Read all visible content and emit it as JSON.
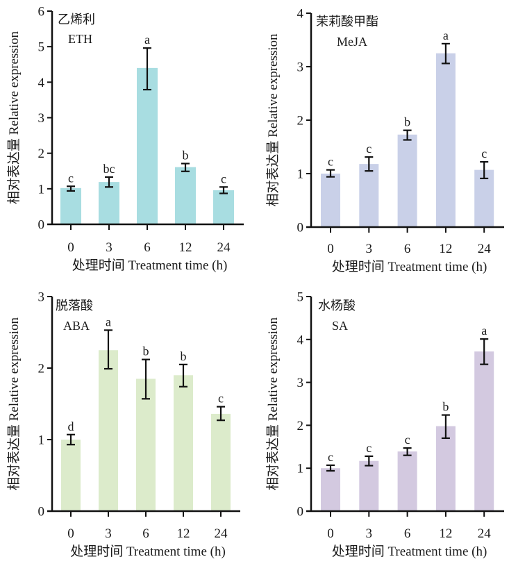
{
  "chart_data": [
    {
      "type": "bar",
      "title_cn": "乙烯利",
      "title_en": "ETH",
      "xlabel": "处理时间 Treatment time (h)",
      "ylabel": "相对表达量 Relative expression",
      "categories": [
        "0",
        "3",
        "6",
        "12",
        "24"
      ],
      "values": [
        1.02,
        1.19,
        4.4,
        1.61,
        0.96
      ],
      "error_low": [
        0.94,
        1.05,
        3.79,
        1.49,
        0.87
      ],
      "error_high": [
        1.07,
        1.33,
        4.96,
        1.71,
        1.05
      ],
      "significance": [
        "c",
        "bc",
        "a",
        "b",
        "c"
      ],
      "ylim": [
        0,
        6
      ],
      "yticks": [
        0,
        1,
        2,
        3,
        4,
        5,
        6
      ],
      "color": "#A8DDE1",
      "grid": false
    },
    {
      "type": "bar",
      "title_cn": "茉莉酸甲酯",
      "title_en": "MeJA",
      "xlabel": "处理时间 Treatment time (h)",
      "ylabel": "相对表达量 Relative expression",
      "categories": [
        "0",
        "3",
        "6",
        "12",
        "24"
      ],
      "values": [
        1.0,
        1.18,
        1.73,
        3.25,
        1.07
      ],
      "error_low": [
        0.94,
        1.05,
        1.63,
        3.06,
        0.91
      ],
      "error_high": [
        1.07,
        1.31,
        1.81,
        3.43,
        1.22
      ],
      "significance": [
        "c",
        "c",
        "b",
        "a",
        "c"
      ],
      "ylim": [
        0,
        4
      ],
      "yticks": [
        0,
        1,
        2,
        3,
        4
      ],
      "color": "#C9D0E8",
      "grid": false
    },
    {
      "type": "bar",
      "title_cn": "脱落酸",
      "title_en": "ABA",
      "xlabel": "处理时间 Treatment time (h)",
      "ylabel": "相对表达量 Relative expression",
      "categories": [
        "0",
        "3",
        "6",
        "12",
        "24"
      ],
      "values": [
        1.0,
        2.25,
        1.85,
        1.9,
        1.36
      ],
      "error_low": [
        0.93,
        1.99,
        1.57,
        1.74,
        1.27
      ],
      "error_high": [
        1.07,
        2.53,
        2.12,
        2.05,
        1.46
      ],
      "significance": [
        "d",
        "a",
        "b",
        "b",
        "c"
      ],
      "ylim": [
        0,
        3
      ],
      "yticks": [
        0,
        1,
        2,
        3
      ],
      "color": "#DCEBCB",
      "grid": false
    },
    {
      "type": "bar",
      "title_cn": "水杨酸",
      "title_en": "SA",
      "xlabel": "处理时间 Treatment time (h)",
      "ylabel": "相对表达量 Relative expression",
      "categories": [
        "0",
        "3",
        "6",
        "12",
        "24"
      ],
      "values": [
        1.0,
        1.17,
        1.39,
        1.98,
        3.72
      ],
      "error_low": [
        0.94,
        1.06,
        1.3,
        1.7,
        3.42
      ],
      "error_high": [
        1.07,
        1.28,
        1.47,
        2.24,
        4.01
      ],
      "significance": [
        "c",
        "c",
        "c",
        "b",
        "a"
      ],
      "ylim": [
        0,
        5
      ],
      "yticks": [
        0,
        1,
        2,
        3,
        4,
        5
      ],
      "color": "#D3C9E0",
      "grid": false
    }
  ]
}
